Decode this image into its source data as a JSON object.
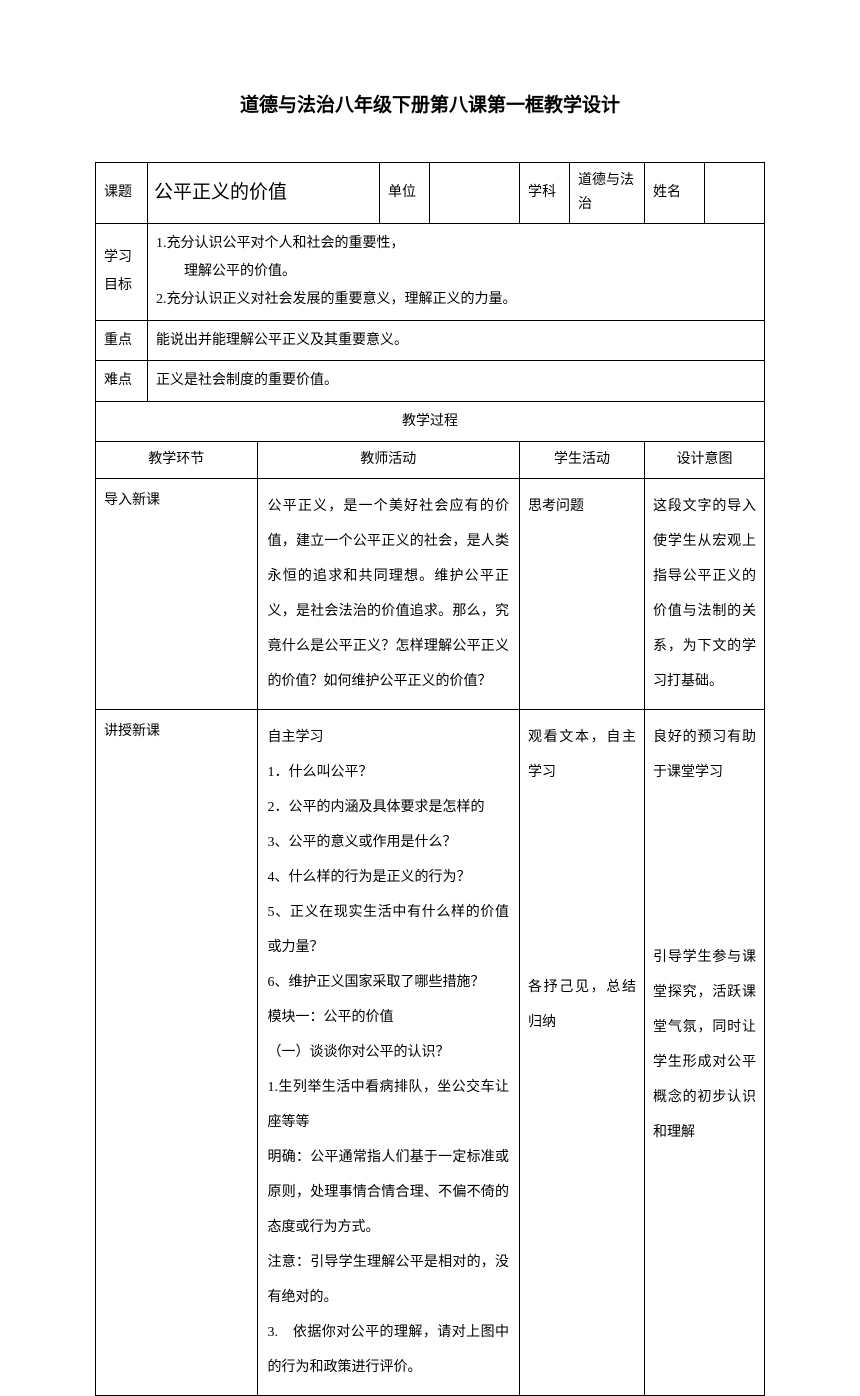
{
  "title": "道德与法治八年级下册第八课第一框教学设计",
  "header": {
    "topic_label": "课题",
    "topic_value": "公平正义的价值",
    "unit_label": "单位",
    "unit_value": "",
    "subject_label": "学科",
    "subject_value": "道德与法治",
    "name_label": "姓名",
    "name_value": ""
  },
  "objectives": {
    "label_line1": "学习",
    "label_line2": "目标",
    "content": "1.充分认识公平对个人和社会的重要性，\n　　理解公平的价值。\n2.充分认识正义对社会发展的重要意义，理解正义的力量。"
  },
  "key_point": {
    "label": "重点",
    "content": "能说出并能理解公平正义及其重要意义。"
  },
  "difficulty": {
    "label": "难点",
    "content": "正义是社会制度的重要价值。"
  },
  "process_header": "教学过程",
  "columns": {
    "stage": "教学环节",
    "teacher": "教师活动",
    "student": "学生活动",
    "design": "设计意图"
  },
  "rows": [
    {
      "stage": "导入新课",
      "teacher": "公平正义，是一个美好社会应有的价值，建立一个公平正义的社会，是人类永恒的追求和共同理想。维护公平正义，是社会法治的价值追求。那么，究竟什么是公平正义？怎样理解公平正义的价值？如何维护公平正义的价值？",
      "student": "思考问题",
      "design": "这段文字的导入使学生从宏观上指导公平正义的价值与法制的关系，为下文的学习打基础。"
    },
    {
      "stage": "讲授新课",
      "teacher_lines": [
        "自主学习",
        "1．什么叫公平？",
        "2．公平的内涵及具体要求是怎样的",
        "3、公平的意义或作用是什么？",
        "4、什么样的行为是正义的行为？",
        "5、正义在现实生活中有什么样的价值或力量？",
        "6、维护正义国家采取了哪些措施？",
        "模块一：公平的价值",
        "（一）谈谈你对公平的认识？",
        "1.生列举生活中看病排队，坐公交车让座等等",
        "明确：公平通常指人们基于一定标准或原则，处理事情合情合理、不偏不倚的态度或行为方式。",
        "注意：引导学生理解公平是相对的，没有绝对的。",
        "3.　依据你对公平的理解，请对上图中的行为和政策进行评价。"
      ],
      "student_block1": "观看文本，自主学习",
      "student_block2": "各抒己见，总结归纳",
      "design_block1": "良好的预习有助于课堂学习",
      "design_block2": "引导学生参与课堂探究，活跃课堂气氛，同时让学生形成对公平概念的初步认识和理解"
    }
  ]
}
